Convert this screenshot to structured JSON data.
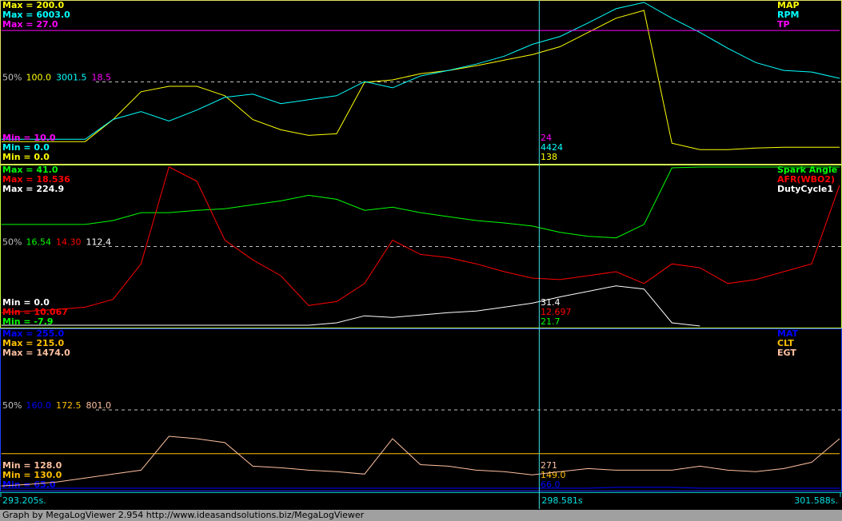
{
  "chart_data": [
    {
      "type": "line",
      "xlim": [
        293.205,
        301.588
      ],
      "x": [
        293.21,
        293.489,
        293.768,
        294.047,
        294.326,
        294.605,
        294.884,
        295.163,
        295.442,
        295.721,
        296.0,
        296.279,
        296.558,
        296.837,
        297.116,
        297.395,
        297.674,
        297.953,
        298.232,
        298.511,
        298.79,
        299.069,
        299.348,
        299.627,
        299.906,
        300.185,
        300.464,
        300.743,
        301.022,
        301.301,
        301.58
      ],
      "mid_name": "50%",
      "series": [
        {
          "name": "MAP",
          "color": "#ffff00",
          "ylim": [
            0,
            200
          ],
          "max_label": "Max = 200.0",
          "min_label": "Min = 0.0",
          "mid_label": "100.0",
          "cursor_label": "138",
          "values": [
            24.9,
            24.9,
            24.9,
            24.9,
            52.7,
            87.6,
            94.5,
            94.5,
            82.6,
            52.7,
            39.8,
            32.8,
            34.8,
            99.5,
            102.5,
            110.4,
            114.4,
            120.4,
            127.4,
            134.3,
            144.3,
            162.2,
            180.1,
            190.0,
            22.9,
            14.9,
            14.9,
            16.9,
            17.9,
            17.9,
            17.9
          ]
        },
        {
          "name": "RPM",
          "color": "#00ffff",
          "ylim": [
            0,
            6003
          ],
          "max_label": "Max = 6003.0",
          "min_label": "Min = 0.0",
          "mid_label": "3001.5",
          "cursor_label": "4424",
          "values": [
            836,
            836,
            836,
            836,
            1583,
            1882,
            1523,
            1941,
            2419,
            2539,
            2180,
            2330,
            2479,
            3016,
            2778,
            3226,
            3435,
            3674,
            3972,
            4420,
            4719,
            5227,
            5764,
            6003,
            5406,
            4868,
            4271,
            3733,
            3435,
            3375,
            3136
          ]
        },
        {
          "name": "TP",
          "color": "#ff00ff",
          "ylim": [
            10,
            27
          ],
          "max_label": "Max = 27.0",
          "min_label": "Min = 10.0",
          "mid_label": "18.5",
          "cursor_label": "24",
          "values": [
            24,
            24,
            24,
            24,
            24,
            24,
            24,
            24,
            24,
            24,
            24,
            24,
            24,
            24,
            24,
            24,
            24,
            24,
            24,
            24,
            24,
            24,
            24,
            24,
            24,
            24,
            24,
            24,
            24,
            24,
            24
          ]
        }
      ]
    },
    {
      "type": "line",
      "xlim": [
        293.205,
        301.588
      ],
      "x": [
        293.21,
        293.489,
        293.768,
        294.047,
        294.326,
        294.605,
        294.884,
        295.163,
        295.442,
        295.721,
        296.0,
        296.279,
        296.558,
        296.837,
        297.116,
        297.395,
        297.674,
        297.953,
        298.232,
        298.511,
        298.79,
        299.069,
        299.348,
        299.627,
        299.906,
        300.185,
        300.464,
        300.743,
        301.022,
        301.301,
        301.58
      ],
      "mid_name": "50%",
      "series": [
        {
          "name": "Spark Angle",
          "color": "#00ff00",
          "ylim": [
            -7.9,
            41.0
          ],
          "max_label": "Max = 41.0",
          "min_label": "Min = -7.9",
          "mid_label": "16.54",
          "cursor_label": "21.7",
          "values": [
            23.33,
            23.33,
            23.33,
            23.33,
            24.54,
            26.96,
            26.96,
            27.69,
            28.17,
            29.38,
            30.59,
            32.29,
            31.07,
            27.69,
            28.65,
            26.96,
            25.75,
            24.54,
            23.81,
            22.84,
            20.91,
            19.7,
            19.21,
            23.33,
            40.76,
            41.0,
            41.0,
            41.0,
            41.0,
            41.0,
            41.0
          ]
        },
        {
          "name": "AFR(WBO2)",
          "color": "#ff0000",
          "ylim": [
            10.067,
            18.536
          ],
          "max_label": "Max = 18.536",
          "min_label": "Min = 10.067",
          "mid_label": "14.30",
          "cursor_label": "12.697",
          "values": [
            10.78,
            10.86,
            10.95,
            11.07,
            11.49,
            13.38,
            18.54,
            17.78,
            14.64,
            13.59,
            12.75,
            11.16,
            11.37,
            12.33,
            14.64,
            13.88,
            13.71,
            13.38,
            12.96,
            12.62,
            12.54,
            12.75,
            12.96,
            12.33,
            13.38,
            13.17,
            12.33,
            12.54,
            12.96,
            13.38,
            17.57
          ]
        },
        {
          "name": "DutyCycle1",
          "color": "#ffffff",
          "ylim": [
            0,
            224.9
          ],
          "max_label": "Max = 224.9",
          "min_label": "Min = 0.0",
          "mid_label": "112.4",
          "cursor_label": "31.4",
          "values": [
            1.1,
            1.1,
            1.1,
            1.1,
            1.1,
            1.1,
            1.1,
            1.1,
            1.1,
            1.1,
            1.1,
            1.1,
            4.5,
            14.5,
            12.2,
            15.6,
            18.9,
            21.2,
            26.7,
            32.3,
            41.2,
            49.0,
            56.8,
            52.3,
            4.5,
            0.0,
            null,
            null,
            null,
            null,
            null
          ]
        }
      ]
    },
    {
      "type": "line",
      "xlim": [
        293.205,
        301.588
      ],
      "x": [
        293.21,
        293.489,
        293.768,
        294.047,
        294.326,
        294.605,
        294.884,
        295.163,
        295.442,
        295.721,
        296.0,
        296.279,
        296.558,
        296.837,
        297.116,
        297.395,
        297.674,
        297.953,
        298.232,
        298.511,
        298.79,
        299.069,
        299.348,
        299.627,
        299.906,
        300.185,
        300.464,
        300.743,
        301.022,
        301.301,
        301.58
      ],
      "mid_name": "50%",
      "xticks": [
        {
          "value": 293.205,
          "label": "293.205s."
        },
        {
          "value": 301.588,
          "label": "301.588s."
        }
      ],
      "cursor": {
        "value": 298.581,
        "label": "298.581s"
      },
      "series": [
        {
          "name": "MAT",
          "color": "#0000ff",
          "ylim": [
            65,
            255
          ],
          "max_label": "Max = 255.0",
          "min_label": "Min = 65.0",
          "mid_label": "160.0",
          "cursor_label": "66.0",
          "values": [
            66,
            66,
            66,
            66,
            66,
            66,
            66,
            66,
            66,
            66,
            66,
            66,
            66,
            66,
            66,
            66,
            66,
            66,
            66,
            66,
            66,
            66,
            67,
            67,
            67,
            66,
            66,
            66,
            66,
            66,
            66
          ]
        },
        {
          "name": "CLT",
          "color": "#ffc000",
          "ylim": [
            130,
            215
          ],
          "max_label": "Max = 215.0",
          "min_label": "Min = 130.0",
          "mid_label": "172.5",
          "cursor_label": "149.0",
          "values": [
            149.0,
            149.0,
            149.0,
            149.0,
            149.0,
            149.0,
            149.0,
            149.0,
            149.0,
            149.0,
            149.0,
            149.0,
            149.0,
            149.0,
            149.0,
            149.0,
            149.0,
            149.0,
            149.0,
            149.0,
            149.0,
            149.0,
            149.0,
            149.0,
            149.0,
            149.0,
            149.0,
            149.0,
            149.0,
            149.0,
            149.0
          ]
        },
        {
          "name": "EGT",
          "color": "#ffc0a0",
          "ylim": [
            128,
            1474
          ],
          "max_label": "Max = 1474.0",
          "min_label": "Min = 128.0",
          "mid_label": "801.0",
          "cursor_label": "271",
          "values": [
            154.8,
            168.2,
            188.3,
            221.8,
            255.2,
            288.7,
            576.7,
            556.6,
            523.1,
            322.2,
            308.8,
            288.7,
            275.3,
            255.2,
            556.6,
            335.6,
            322.2,
            288.7,
            275.3,
            248.5,
            275.3,
            302.1,
            288.7,
            288.7,
            288.7,
            322.2,
            288.7,
            275.3,
            302.1,
            355.7,
            556.6
          ]
        }
      ]
    }
  ],
  "footer": "Graph by MegaLogViewer 2.954 http://www.ideasandsolutions.biz/MegaLogViewer"
}
